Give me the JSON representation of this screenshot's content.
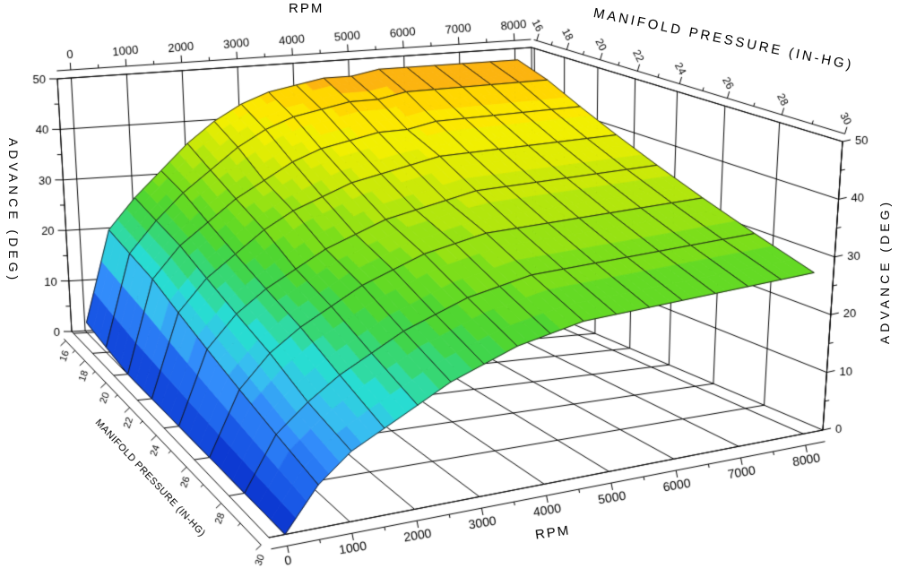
{
  "chart_data": {
    "type": "surface",
    "background_color": "#ffffff",
    "grid": true,
    "legend_position": "none",
    "x_axis": {
      "label": "RPM",
      "range": [
        0,
        8000
      ],
      "ticks": [
        0,
        1000,
        2000,
        3000,
        4000,
        5000,
        6000,
        7000,
        8000
      ],
      "minor_tick_step": 500
    },
    "y_axis": {
      "label": "MANIFOLD PRESSURE (IN-HG)",
      "range": [
        16,
        30
      ],
      "ticks": [
        16,
        18,
        20,
        22,
        24,
        26,
        28,
        30
      ],
      "minor_tick_step": 1
    },
    "z_axis": {
      "label": "ADVANCE (DEG)",
      "range": [
        0,
        50
      ],
      "ticks": [
        0,
        10,
        20,
        30,
        40,
        50
      ],
      "minor_tick_step": 5
    },
    "rpm_values": [
      0,
      500,
      1000,
      1500,
      2000,
      2500,
      3000,
      3500,
      4000,
      4500,
      5000,
      5500,
      6000,
      6500,
      7000,
      7500,
      8000
    ],
    "map_values": [
      16,
      18,
      20,
      22,
      24,
      26,
      28,
      30
    ],
    "advance_by_map_row": [
      [
        2,
        20,
        26,
        31,
        36,
        40,
        43,
        45,
        46,
        47,
        47,
        48,
        48,
        48,
        48,
        48,
        48
      ],
      [
        1,
        19,
        25,
        30,
        34,
        38,
        41,
        43,
        44,
        45,
        45,
        46,
        46,
        46,
        46,
        46,
        46
      ],
      [
        0,
        18,
        24,
        28,
        32,
        35,
        38,
        40,
        41,
        42,
        42,
        43,
        43,
        43,
        43,
        43,
        43
      ],
      [
        0,
        16,
        22,
        26,
        30,
        33,
        35,
        37,
        38,
        39,
        40,
        40,
        40,
        40,
        40,
        40,
        40
      ],
      [
        0,
        14,
        20,
        24,
        27,
        30,
        32,
        34,
        35,
        36,
        37,
        37,
        37,
        37,
        37,
        37,
        37
      ],
      [
        0,
        12,
        18,
        22,
        25,
        28,
        30,
        32,
        33,
        34,
        34,
        34,
        34,
        34,
        34,
        34,
        34
      ],
      [
        0,
        10,
        15,
        19,
        22,
        25,
        27,
        29,
        30,
        31,
        31,
        31,
        31,
        31,
        31,
        31,
        31
      ],
      [
        0,
        8,
        13,
        16,
        19,
        22,
        24,
        26,
        27,
        28,
        28,
        28,
        28,
        28,
        28,
        28,
        28
      ]
    ],
    "band_size_deg": 2,
    "mesh_color": "#141414",
    "axis_color": "#000000",
    "colormap_stops": [
      [
        0,
        [
          10,
          50,
          205
        ]
      ],
      [
        6,
        [
          28,
          95,
          235
        ]
      ],
      [
        11,
        [
          50,
          140,
          250
        ]
      ],
      [
        15,
        [
          55,
          190,
          240
        ]
      ],
      [
        19,
        [
          40,
          220,
          210
        ]
      ],
      [
        23,
        [
          55,
          215,
          115
        ]
      ],
      [
        26,
        [
          70,
          212,
          55
        ]
      ],
      [
        30,
        [
          110,
          220,
          30
        ]
      ],
      [
        34,
        [
          165,
          228,
          15
        ]
      ],
      [
        38,
        [
          215,
          235,
          5
        ]
      ],
      [
        42,
        [
          250,
          240,
          0
        ]
      ],
      [
        45,
        [
          255,
          215,
          0
        ]
      ],
      [
        47,
        [
          252,
          180,
          15
        ]
      ],
      [
        49,
        [
          244,
          138,
          28
        ]
      ],
      [
        50,
        [
          240,
          128,
          28
        ]
      ]
    ]
  }
}
